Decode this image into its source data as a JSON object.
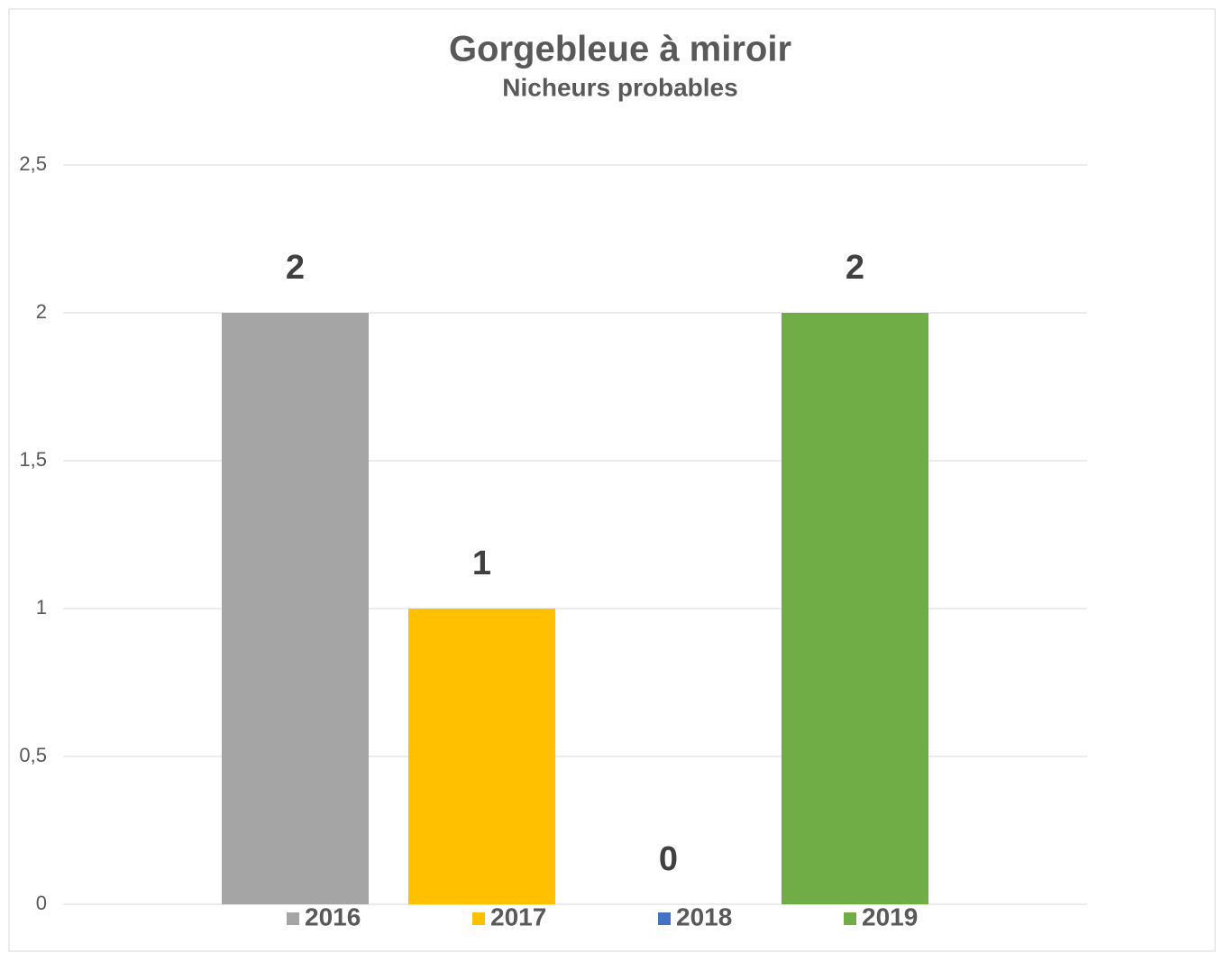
{
  "chart_data": {
    "type": "bar",
    "title": "Gorgebleue à miroir",
    "subtitle": "Nicheurs probables",
    "categories": [
      null
    ],
    "series": [
      {
        "name": "2016",
        "color": "#a5a5a5",
        "values": [
          2
        ]
      },
      {
        "name": "2017",
        "color": "#ffc000",
        "values": [
          1
        ]
      },
      {
        "name": "2018",
        "color": "#4472c4",
        "values": [
          0
        ]
      },
      {
        "name": "2019",
        "color": "#70ad47",
        "values": [
          2
        ]
      }
    ],
    "ylim": [
      0,
      2.5
    ],
    "yticks": [
      0,
      {
        "value": 0.5,
        "label": "0,5"
      },
      1,
      {
        "value": 1.5,
        "label": "1,5"
      },
      2,
      {
        "value": 2.5,
        "label": "2,5"
      }
    ],
    "grid": true,
    "legend": "bottom"
  }
}
